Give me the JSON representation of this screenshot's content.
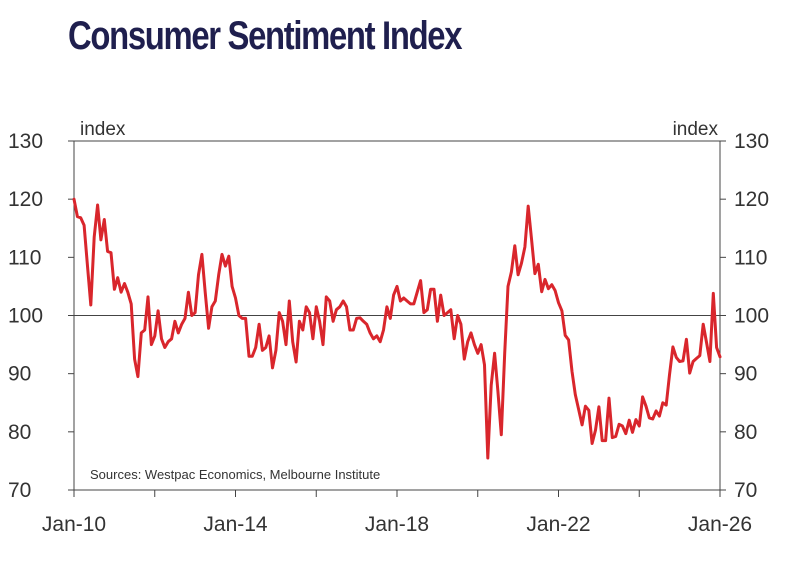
{
  "title": "Consumer Sentiment Index",
  "colors": {
    "title": "#1f1f4e",
    "series": "#d9262c",
    "axis": "#333333"
  },
  "chart_data": {
    "type": "line",
    "title": "Consumer Sentiment Index",
    "left_unit_label": "index",
    "right_unit_label": "index",
    "source_note": "Sources: Westpac Economics, Melbourne Institute",
    "ylim": [
      70,
      130
    ],
    "y_ticks": [
      "70",
      "80",
      "90",
      "100",
      "110",
      "120",
      "130"
    ],
    "y_tick_values": [
      70,
      80,
      90,
      100,
      110,
      120,
      130
    ],
    "x_range": [
      "2010-01",
      "2026-01"
    ],
    "x_tick_labels": [
      "Jan-10",
      "Jan-14",
      "Jan-18",
      "Jan-22",
      "Jan-26"
    ],
    "x_tick_dates": [
      "2010-01",
      "2012-01",
      "2014-01",
      "2016-01",
      "2018-01",
      "2020-01",
      "2022-01",
      "2024-01",
      "2026-01"
    ],
    "reference_line": 100,
    "grid": false,
    "series": [
      {
        "color": "#d9262c",
        "points": [
          [
            "2010-01",
            120.0
          ],
          [
            "2010-02",
            117.0
          ],
          [
            "2010-03",
            116.8
          ],
          [
            "2010-04",
            115.5
          ],
          [
            "2010-05",
            108.5
          ],
          [
            "2010-06",
            101.8
          ],
          [
            "2010-07",
            113.5
          ],
          [
            "2010-08",
            119.0
          ],
          [
            "2010-09",
            113.0
          ],
          [
            "2010-10",
            116.5
          ],
          [
            "2010-11",
            111.0
          ],
          [
            "2010-12",
            110.8
          ],
          [
            "2011-01",
            104.5
          ],
          [
            "2011-02",
            106.5
          ],
          [
            "2011-03",
            104.0
          ],
          [
            "2011-04",
            105.5
          ],
          [
            "2011-05",
            104.0
          ],
          [
            "2011-06",
            102.0
          ],
          [
            "2011-07",
            92.5
          ],
          [
            "2011-08",
            89.5
          ],
          [
            "2011-09",
            97.0
          ],
          [
            "2011-10",
            97.5
          ],
          [
            "2011-11",
            103.2
          ],
          [
            "2011-12",
            95.0
          ],
          [
            "2012-01",
            96.5
          ],
          [
            "2012-02",
            100.8
          ],
          [
            "2012-03",
            96.0
          ],
          [
            "2012-04",
            94.5
          ],
          [
            "2012-05",
            95.5
          ],
          [
            "2012-06",
            96.0
          ],
          [
            "2012-07",
            99.0
          ],
          [
            "2012-08",
            97.0
          ],
          [
            "2012-09",
            98.5
          ],
          [
            "2012-10",
            99.5
          ],
          [
            "2012-11",
            104.0
          ],
          [
            "2012-12",
            100.0
          ],
          [
            "2013-01",
            100.5
          ],
          [
            "2013-02",
            107.0
          ],
          [
            "2013-03",
            110.5
          ],
          [
            "2013-04",
            104.0
          ],
          [
            "2013-05",
            97.8
          ],
          [
            "2013-06",
            101.5
          ],
          [
            "2013-07",
            102.5
          ],
          [
            "2013-08",
            107.0
          ],
          [
            "2013-09",
            110.5
          ],
          [
            "2013-10",
            108.5
          ],
          [
            "2013-11",
            110.2
          ],
          [
            "2013-12",
            105.0
          ],
          [
            "2014-01",
            103.0
          ],
          [
            "2014-02",
            100.0
          ],
          [
            "2014-03",
            99.5
          ],
          [
            "2014-04",
            99.5
          ],
          [
            "2014-05",
            93.0
          ],
          [
            "2014-06",
            93.0
          ],
          [
            "2014-07",
            94.5
          ],
          [
            "2014-08",
            98.5
          ],
          [
            "2014-09",
            94.0
          ],
          [
            "2014-10",
            94.5
          ],
          [
            "2014-11",
            96.5
          ],
          [
            "2014-12",
            91.0
          ],
          [
            "2015-01",
            94.0
          ],
          [
            "2015-02",
            100.5
          ],
          [
            "2015-03",
            99.0
          ],
          [
            "2015-04",
            95.0
          ],
          [
            "2015-05",
            102.5
          ],
          [
            "2015-06",
            95.5
          ],
          [
            "2015-07",
            92.0
          ],
          [
            "2015-08",
            99.0
          ],
          [
            "2015-09",
            97.5
          ],
          [
            "2015-10",
            101.5
          ],
          [
            "2015-11",
            100.5
          ],
          [
            "2015-12",
            96.0
          ],
          [
            "2016-01",
            101.5
          ],
          [
            "2016-02",
            99.0
          ],
          [
            "2016-03",
            95.0
          ],
          [
            "2016-04",
            103.2
          ],
          [
            "2016-05",
            102.5
          ],
          [
            "2016-06",
            99.0
          ],
          [
            "2016-07",
            101.0
          ],
          [
            "2016-08",
            101.5
          ],
          [
            "2016-09",
            102.5
          ],
          [
            "2016-10",
            101.5
          ],
          [
            "2016-11",
            97.5
          ],
          [
            "2016-12",
            97.5
          ],
          [
            "2017-01",
            99.5
          ],
          [
            "2017-02",
            99.6
          ],
          [
            "2017-03",
            99.0
          ],
          [
            "2017-04",
            98.5
          ],
          [
            "2017-05",
            97.0
          ],
          [
            "2017-06",
            96.0
          ],
          [
            "2017-07",
            96.5
          ],
          [
            "2017-08",
            95.5
          ],
          [
            "2017-09",
            97.5
          ],
          [
            "2017-10",
            101.5
          ],
          [
            "2017-11",
            99.5
          ],
          [
            "2017-12",
            103.5
          ],
          [
            "2018-01",
            105.0
          ],
          [
            "2018-02",
            102.5
          ],
          [
            "2018-03",
            103.0
          ],
          [
            "2018-04",
            102.5
          ],
          [
            "2018-05",
            102.0
          ],
          [
            "2018-06",
            102.0
          ],
          [
            "2018-07",
            104.0
          ],
          [
            "2018-08",
            106.0
          ],
          [
            "2018-09",
            100.5
          ],
          [
            "2018-10",
            101.0
          ],
          [
            "2018-11",
            104.5
          ],
          [
            "2018-12",
            104.5
          ],
          [
            "2019-01",
            99.0
          ],
          [
            "2019-02",
            103.5
          ],
          [
            "2019-03",
            100.0
          ],
          [
            "2019-04",
            100.5
          ],
          [
            "2019-05",
            101.0
          ],
          [
            "2019-06",
            96.0
          ],
          [
            "2019-07",
            100.0
          ],
          [
            "2019-08",
            98.5
          ],
          [
            "2019-09",
            92.5
          ],
          [
            "2019-10",
            95.5
          ],
          [
            "2019-11",
            97.0
          ],
          [
            "2019-12",
            95.0
          ],
          [
            "2020-01",
            93.5
          ],
          [
            "2020-02",
            95.0
          ],
          [
            "2020-03",
            91.5
          ],
          [
            "2020-04",
            75.5
          ],
          [
            "2020-05",
            88.0
          ],
          [
            "2020-06",
            93.5
          ],
          [
            "2020-07",
            87.0
          ],
          [
            "2020-08",
            79.5
          ],
          [
            "2020-09",
            93.5
          ],
          [
            "2020-10",
            105.0
          ],
          [
            "2020-11",
            107.5
          ],
          [
            "2020-12",
            112.0
          ],
          [
            "2021-01",
            107.0
          ],
          [
            "2021-02",
            109.0
          ],
          [
            "2021-03",
            111.8
          ],
          [
            "2021-04",
            118.8
          ],
          [
            "2021-05",
            113.0
          ],
          [
            "2021-06",
            107.2
          ],
          [
            "2021-07",
            108.8
          ],
          [
            "2021-08",
            104.1
          ],
          [
            "2021-09",
            106.2
          ],
          [
            "2021-10",
            104.6
          ],
          [
            "2021-11",
            105.3
          ],
          [
            "2021-12",
            104.3
          ],
          [
            "2022-01",
            102.2
          ],
          [
            "2022-02",
            100.8
          ],
          [
            "2022-03",
            96.6
          ],
          [
            "2022-04",
            95.8
          ],
          [
            "2022-05",
            90.4
          ],
          [
            "2022-06",
            86.4
          ],
          [
            "2022-07",
            83.8
          ],
          [
            "2022-08",
            81.2
          ],
          [
            "2022-09",
            84.4
          ],
          [
            "2022-10",
            83.7
          ],
          [
            "2022-11",
            78.0
          ],
          [
            "2022-12",
            80.3
          ],
          [
            "2023-01",
            84.3
          ],
          [
            "2023-02",
            78.5
          ],
          [
            "2023-03",
            78.5
          ],
          [
            "2023-04",
            85.8
          ],
          [
            "2023-05",
            79.0
          ],
          [
            "2023-06",
            79.2
          ],
          [
            "2023-07",
            81.3
          ],
          [
            "2023-08",
            81.0
          ],
          [
            "2023-09",
            79.7
          ],
          [
            "2023-10",
            82.0
          ],
          [
            "2023-11",
            79.9
          ],
          [
            "2023-12",
            82.1
          ],
          [
            "2024-01",
            81.0
          ],
          [
            "2024-02",
            86.0
          ],
          [
            "2024-03",
            84.4
          ],
          [
            "2024-04",
            82.4
          ],
          [
            "2024-05",
            82.2
          ],
          [
            "2024-06",
            83.6
          ],
          [
            "2024-07",
            82.7
          ],
          [
            "2024-08",
            85.0
          ],
          [
            "2024-09",
            84.6
          ],
          [
            "2024-10",
            89.8
          ],
          [
            "2024-11",
            94.6
          ],
          [
            "2024-12",
            92.8
          ],
          [
            "2025-01",
            92.1
          ],
          [
            "2025-02",
            92.2
          ],
          [
            "2025-03",
            95.9
          ],
          [
            "2025-04",
            90.1
          ],
          [
            "2025-05",
            92.1
          ],
          [
            "2025-06",
            92.6
          ],
          [
            "2025-07",
            93.1
          ],
          [
            "2025-08",
            98.5
          ],
          [
            "2025-09",
            95.4
          ],
          [
            "2025-10",
            92.1
          ],
          [
            "2025-11",
            103.8
          ],
          [
            "2025-12",
            94.5
          ],
          [
            "2026-01",
            92.9
          ]
        ]
      }
    ]
  }
}
